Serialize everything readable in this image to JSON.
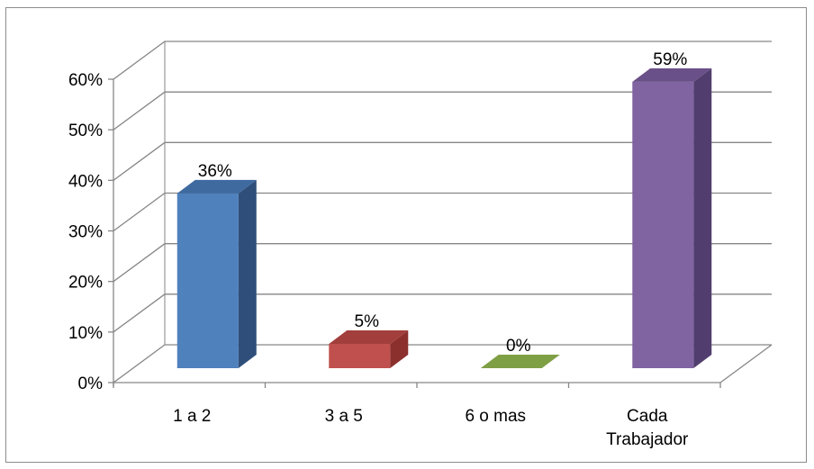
{
  "chart_data": {
    "type": "bar",
    "three_d": true,
    "categories": [
      "1 a 2",
      "3 a 5",
      "6 o mas",
      "Cada Trabajador"
    ],
    "category_lines": [
      [
        "1 a 2"
      ],
      [
        "3 a 5"
      ],
      [
        "6 o mas"
      ],
      [
        "Cada",
        "Trabajador"
      ]
    ],
    "values": [
      36,
      5,
      0,
      59
    ],
    "data_labels": [
      "36%",
      "5%",
      "0%",
      "59%"
    ],
    "yticks": [
      "0%",
      "10%",
      "20%",
      "30%",
      "40%",
      "50%",
      "60%"
    ],
    "ylim": [
      0,
      60
    ],
    "grid": true,
    "legend": "none",
    "title": "",
    "xlabel": "",
    "ylabel": "",
    "colors": [
      {
        "front": "#4f81bd",
        "side": "#2f4f7a",
        "top": "#3f6aa0"
      },
      {
        "front": "#c0504d",
        "side": "#8b302d",
        "top": "#a23f3c"
      },
      {
        "front": "#9bbb59",
        "side": "#6a8a35",
        "top": "#7f9f45"
      },
      {
        "front": "#8064a2",
        "side": "#523e6e",
        "top": "#6a5088"
      }
    ],
    "grid_color": "#868686"
  }
}
